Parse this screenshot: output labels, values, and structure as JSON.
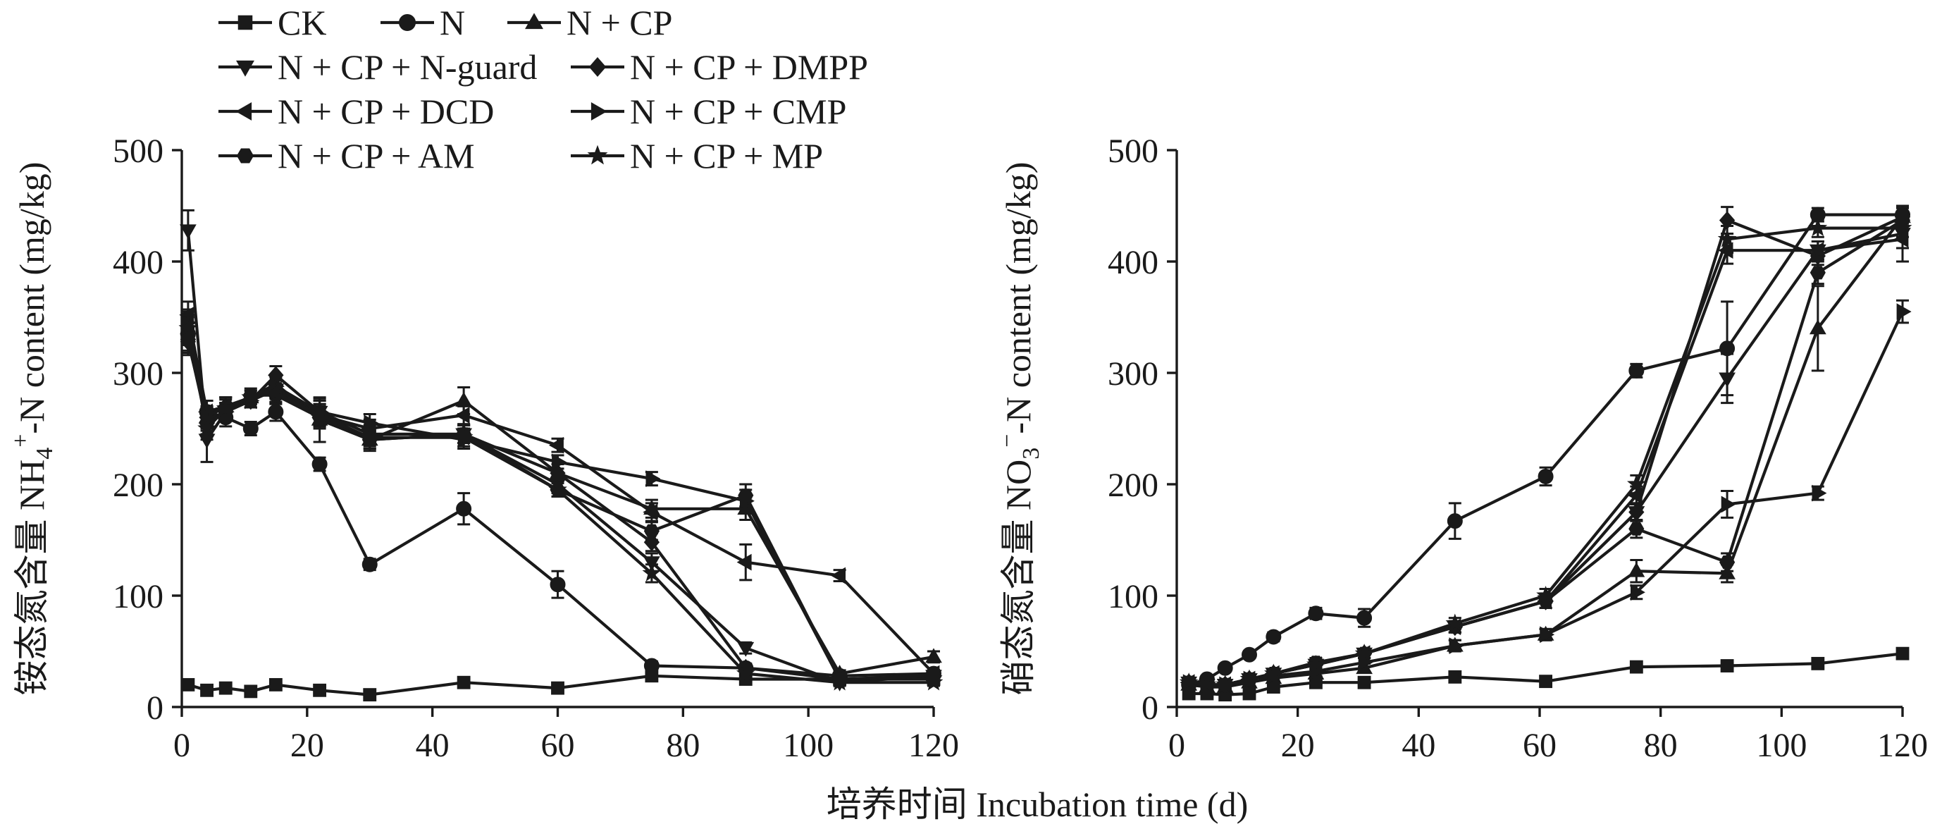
{
  "x_axis_title": "培养时间 Incubation time (d)",
  "chart_data": [
    {
      "type": "line",
      "ylabel": "铵态氮含量 NH4+-N content (mg/kg)",
      "ylabel_parts": {
        "cn": "铵态氮含量 NH",
        "sub": "4",
        "sup": "+",
        "rest": "-N content (mg/kg)"
      },
      "xlim": [
        0,
        120
      ],
      "ylim": [
        0,
        500
      ],
      "xticks": [
        0,
        20,
        40,
        60,
        80,
        100,
        120
      ],
      "yticks": [
        0,
        100,
        200,
        300,
        400,
        500
      ],
      "legend_position": "top-left",
      "series": [
        {
          "name": "CK",
          "marker": "square",
          "x": [
            1,
            4,
            7,
            11,
            15,
            22,
            30,
            45,
            60,
            75,
            90,
            105,
            120
          ],
          "y": [
            20,
            15,
            17,
            14,
            20,
            15,
            11,
            22,
            17,
            28,
            25,
            25,
            25
          ],
          "err": [
            3,
            3,
            2,
            2,
            3,
            2,
            2,
            3,
            2,
            3,
            3,
            3,
            3
          ]
        },
        {
          "name": "N",
          "marker": "circle",
          "x": [
            1,
            4,
            7,
            11,
            15,
            22,
            30,
            45,
            60,
            75,
            90,
            105,
            120
          ],
          "y": [
            335,
            265,
            260,
            250,
            265,
            218,
            128,
            178,
            110,
            37,
            35,
            28,
            30
          ],
          "err": [
            15,
            10,
            8,
            6,
            8,
            6,
            5,
            14,
            12,
            4,
            3,
            3,
            3
          ]
        },
        {
          "name": "N + CP",
          "marker": "triangle-up",
          "x": [
            1,
            4,
            7,
            11,
            15,
            22,
            30,
            45,
            60,
            75,
            90,
            105,
            120
          ],
          "y": [
            340,
            260,
            270,
            278,
            290,
            258,
            240,
            275,
            210,
            178,
            178,
            30,
            45
          ],
          "err": [
            15,
            10,
            8,
            6,
            8,
            20,
            10,
            12,
            8,
            8,
            10,
            3,
            5
          ]
        },
        {
          "name": "N + CP + N-guard",
          "marker": "triangle-down",
          "x": [
            1,
            4,
            7,
            11,
            15,
            22,
            30,
            45,
            60,
            75,
            90,
            105,
            120
          ],
          "y": [
            428,
            240,
            265,
            275,
            285,
            265,
            240,
            245,
            200,
            130,
            53,
            22,
            28
          ],
          "err": [
            18,
            20,
            8,
            6,
            8,
            12,
            8,
            8,
            8,
            8,
            5,
            3,
            3
          ]
        },
        {
          "name": "N + CP + DMPP",
          "marker": "diamond",
          "x": [
            1,
            4,
            7,
            11,
            15,
            22,
            30,
            45,
            60,
            75,
            90,
            105,
            120
          ],
          "y": [
            328,
            260,
            270,
            275,
            298,
            265,
            245,
            245,
            210,
            148,
            35,
            25,
            27
          ],
          "err": [
            12,
            10,
            8,
            6,
            8,
            10,
            8,
            8,
            8,
            8,
            4,
            3,
            3
          ]
        },
        {
          "name": "N + CP + DCD",
          "marker": "triangle-left",
          "x": [
            1,
            4,
            7,
            11,
            15,
            22,
            30,
            45,
            60,
            75,
            90,
            105,
            120
          ],
          "y": [
            352,
            265,
            270,
            275,
            285,
            262,
            250,
            262,
            235,
            175,
            130,
            118,
            30
          ],
          "err": [
            12,
            10,
            8,
            6,
            8,
            10,
            8,
            8,
            6,
            8,
            16,
            5,
            3
          ]
        },
        {
          "name": "N + CP + CMP",
          "marker": "triangle-right",
          "x": [
            1,
            4,
            7,
            11,
            15,
            22,
            30,
            45,
            60,
            75,
            90,
            105,
            120
          ],
          "y": [
            345,
            258,
            265,
            275,
            288,
            265,
            255,
            240,
            220,
            205,
            185,
            25,
            28
          ],
          "err": [
            12,
            10,
            8,
            6,
            8,
            10,
            8,
            8,
            6,
            6,
            10,
            3,
            3
          ]
        },
        {
          "name": "N + CP + AM",
          "marker": "hexagon",
          "x": [
            1,
            4,
            7,
            11,
            15,
            22,
            30,
            45,
            60,
            75,
            90,
            105,
            120
          ],
          "y": [
            330,
            255,
            265,
            280,
            280,
            260,
            240,
            245,
            195,
            158,
            190,
            25,
            28
          ],
          "err": [
            12,
            10,
            8,
            6,
            8,
            10,
            8,
            8,
            6,
            8,
            10,
            3,
            3
          ]
        },
        {
          "name": "N + CP + MP",
          "marker": "star",
          "x": [
            1,
            4,
            7,
            11,
            15,
            22,
            30,
            45,
            60,
            75,
            90,
            105,
            120
          ],
          "y": [
            340,
            250,
            268,
            278,
            282,
            262,
            242,
            242,
            195,
            120,
            30,
            22,
            22
          ],
          "err": [
            12,
            10,
            8,
            6,
            8,
            10,
            8,
            8,
            6,
            8,
            4,
            3,
            3
          ]
        }
      ]
    },
    {
      "type": "line",
      "ylabel": "硝态氮含量 NO3−-N content (mg/kg)",
      "ylabel_parts": {
        "cn": "硝态氮含量 NO",
        "sub": "3",
        "sup": "−",
        "rest": "-N content (mg/kg)"
      },
      "xlim": [
        0,
        120
      ],
      "ylim": [
        0,
        500
      ],
      "xticks": [
        0,
        20,
        40,
        60,
        80,
        100,
        120
      ],
      "yticks": [
        0,
        100,
        200,
        300,
        400,
        500
      ],
      "series": [
        {
          "name": "CK",
          "marker": "square",
          "x": [
            2,
            5,
            8,
            12,
            16,
            23,
            31,
            46,
            61,
            76,
            91,
            106,
            120
          ],
          "y": [
            12,
            12,
            11,
            12,
            18,
            22,
            22,
            27,
            23,
            36,
            37,
            39,
            48
          ],
          "err": [
            3,
            3,
            2,
            2,
            3,
            3,
            3,
            3,
            3,
            3,
            3,
            3,
            4
          ]
        },
        {
          "name": "N",
          "marker": "circle",
          "x": [
            2,
            5,
            8,
            12,
            16,
            23,
            31,
            46,
            61,
            76,
            91,
            106,
            120
          ],
          "y": [
            20,
            25,
            35,
            47,
            63,
            84,
            80,
            167,
            207,
            302,
            322,
            442,
            442
          ],
          "err": [
            3,
            3,
            3,
            3,
            4,
            5,
            8,
            16,
            8,
            6,
            42,
            6,
            8
          ]
        },
        {
          "name": "N + CP",
          "marker": "triangle-up",
          "x": [
            2,
            5,
            8,
            12,
            16,
            23,
            31,
            46,
            61,
            76,
            91,
            106,
            120
          ],
          "y": [
            20,
            18,
            18,
            22,
            26,
            30,
            35,
            55,
            65,
            122,
            120,
            340,
            440
          ],
          "err": [
            3,
            3,
            3,
            3,
            3,
            3,
            4,
            5,
            5,
            10,
            8,
            38,
            8
          ]
        },
        {
          "name": "N + CP + N-guard",
          "marker": "triangle-down",
          "x": [
            2,
            5,
            8,
            12,
            16,
            23,
            31,
            46,
            61,
            76,
            91,
            106,
            120
          ],
          "y": [
            22,
            20,
            20,
            25,
            30,
            38,
            48,
            72,
            95,
            175,
            295,
            410,
            425
          ],
          "err": [
            3,
            3,
            3,
            3,
            3,
            4,
            4,
            5,
            6,
            8,
            22,
            8,
            25
          ]
        },
        {
          "name": "N + CP + DMPP",
          "marker": "diamond",
          "x": [
            2,
            5,
            8,
            12,
            16,
            23,
            31,
            46,
            61,
            76,
            91,
            106,
            120
          ],
          "y": [
            22,
            20,
            20,
            25,
            30,
            38,
            48,
            72,
            95,
            175,
            437,
            405,
            440
          ],
          "err": [
            3,
            3,
            3,
            3,
            3,
            4,
            4,
            5,
            6,
            8,
            12,
            8,
            8
          ]
        },
        {
          "name": "N + CP + DCD",
          "marker": "triangle-left",
          "x": [
            2,
            5,
            8,
            12,
            16,
            23,
            31,
            46,
            61,
            76,
            91,
            106,
            120
          ],
          "y": [
            22,
            20,
            20,
            25,
            30,
            38,
            48,
            72,
            95,
            190,
            410,
            410,
            420
          ],
          "err": [
            3,
            3,
            3,
            3,
            3,
            4,
            4,
            5,
            6,
            8,
            12,
            8,
            8
          ]
        },
        {
          "name": "N + CP + CMP",
          "marker": "triangle-right",
          "x": [
            2,
            5,
            8,
            12,
            16,
            23,
            31,
            46,
            61,
            76,
            91,
            106,
            120
          ],
          "y": [
            22,
            20,
            20,
            25,
            28,
            32,
            40,
            55,
            65,
            103,
            182,
            192,
            355
          ],
          "err": [
            3,
            3,
            3,
            3,
            3,
            4,
            4,
            5,
            5,
            6,
            12,
            6,
            10
          ]
        },
        {
          "name": "N + CP + AM",
          "marker": "hexagon",
          "x": [
            2,
            5,
            8,
            12,
            16,
            23,
            31,
            46,
            61,
            76,
            91,
            106,
            120
          ],
          "y": [
            22,
            20,
            20,
            25,
            30,
            40,
            48,
            72,
            95,
            160,
            130,
            390,
            437
          ],
          "err": [
            3,
            3,
            3,
            3,
            3,
            4,
            4,
            5,
            6,
            8,
            8,
            10,
            8
          ]
        },
        {
          "name": "N + CP + MP",
          "marker": "star",
          "x": [
            2,
            5,
            8,
            12,
            16,
            23,
            31,
            46,
            61,
            76,
            91,
            106,
            120
          ],
          "y": [
            22,
            20,
            20,
            25,
            30,
            38,
            48,
            75,
            100,
            200,
            420,
            430,
            430
          ],
          "err": [
            3,
            3,
            3,
            3,
            3,
            4,
            4,
            5,
            6,
            8,
            12,
            8,
            8
          ]
        }
      ]
    }
  ]
}
